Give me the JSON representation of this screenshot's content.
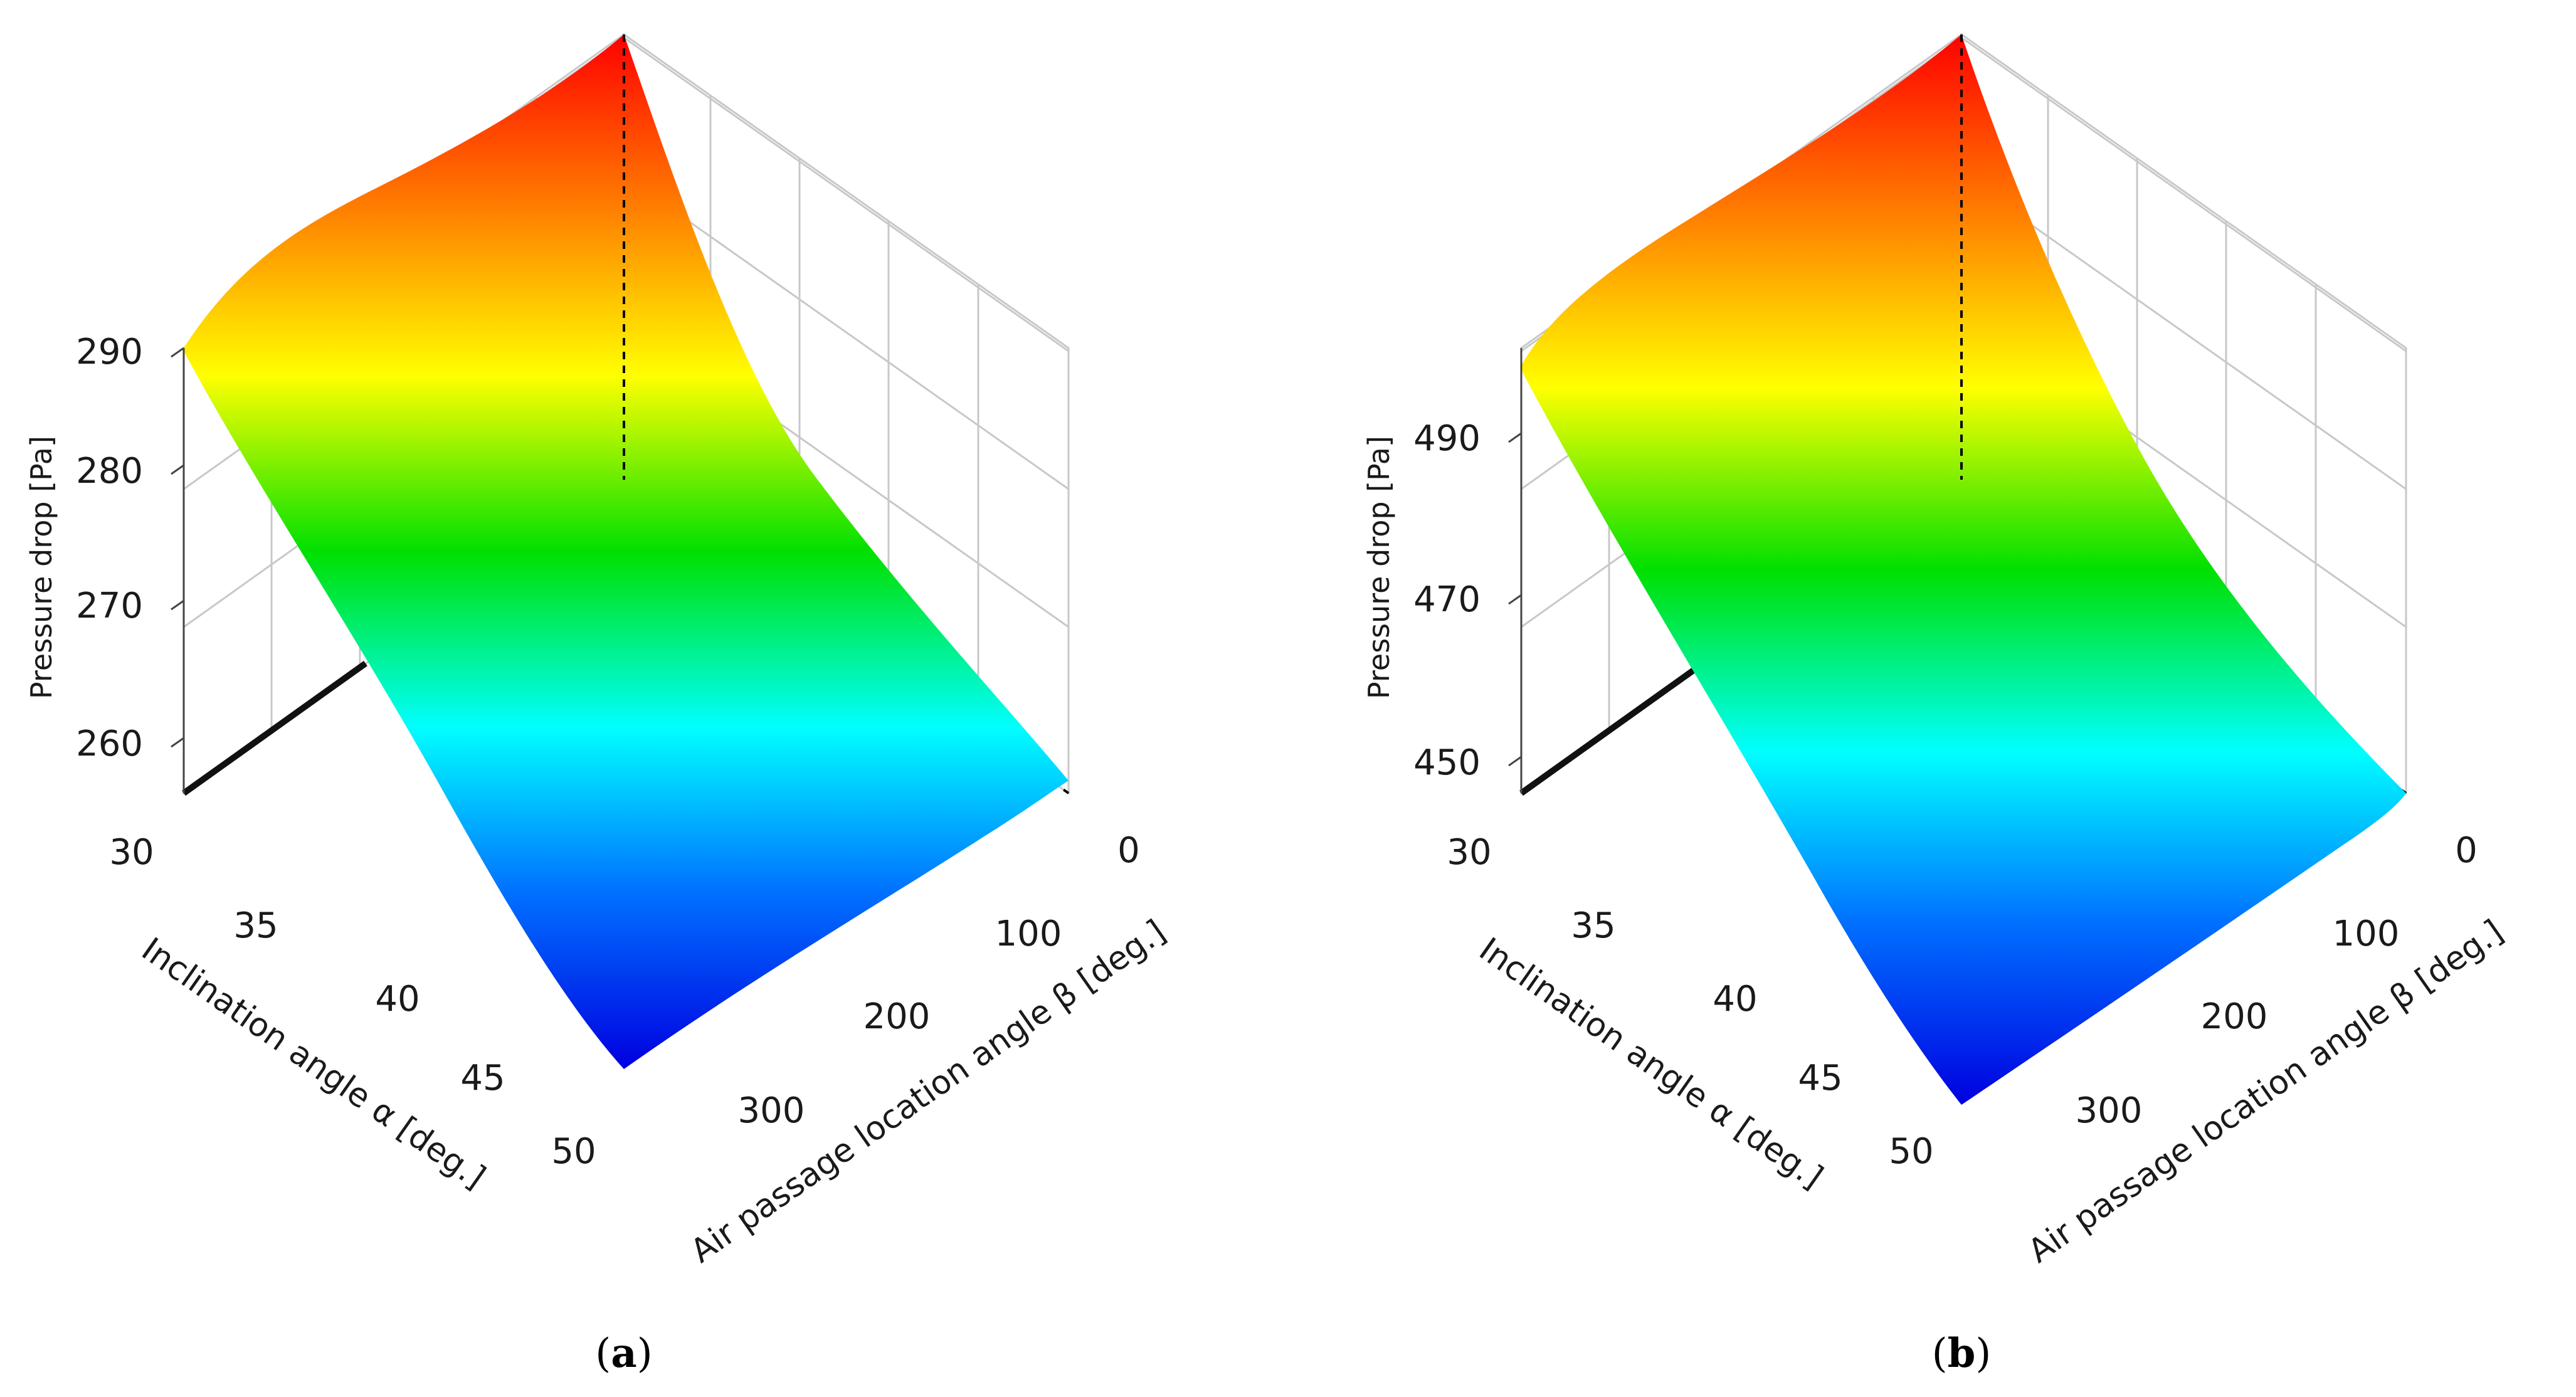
{
  "chart_data": [
    {
      "type": "surface3d",
      "panel_label": "a",
      "xlabel": "Inclination angle α [deg.]",
      "ylabel": "Air passage location angle β [deg.]",
      "zlabel": "Pressure drop [Pa]",
      "x_ticks": [
        "30",
        "35",
        "40",
        "45",
        "50"
      ],
      "y_ticks": [
        "0",
        "100",
        "200",
        "300"
      ],
      "z_ticks": [
        "260",
        "270",
        "280",
        "290"
      ],
      "xlim": [
        30,
        50
      ],
      "ylim": [
        0,
        360
      ],
      "zlim": [
        256,
        302
      ],
      "colormap": [
        "#ff0000",
        "#ff8000",
        "#ffff00",
        "#00e000",
        "#00ffff",
        "#0070ff",
        "#0000e0"
      ],
      "corners": {
        "alpha30_beta0": 302,
        "alpha30_beta360": 290,
        "alpha50_beta0": 257,
        "alpha50_beta360": 256
      }
    },
    {
      "type": "surface3d",
      "panel_label": "b",
      "xlabel": "Inclination angle α [deg.]",
      "ylabel": "Air passage location angle β [deg.]",
      "zlabel": "Pressure drop [Pa]",
      "x_ticks": [
        "30",
        "35",
        "40",
        "45",
        "50"
      ],
      "y_ticks": [
        "0",
        "100",
        "200",
        "300"
      ],
      "z_ticks": [
        "450",
        "470",
        "490"
      ],
      "xlim": [
        30,
        50
      ],
      "ylim": [
        0,
        360
      ],
      "zlim": [
        444,
        518
      ],
      "colormap": [
        "#ff0000",
        "#ff8000",
        "#ffff00",
        "#00e000",
        "#00ffff",
        "#0070ff",
        "#0000e0"
      ],
      "corners": {
        "alpha30_beta0": 518,
        "alpha30_beta360": 497,
        "alpha50_beta0": 446,
        "alpha50_beta360": 445
      }
    }
  ]
}
